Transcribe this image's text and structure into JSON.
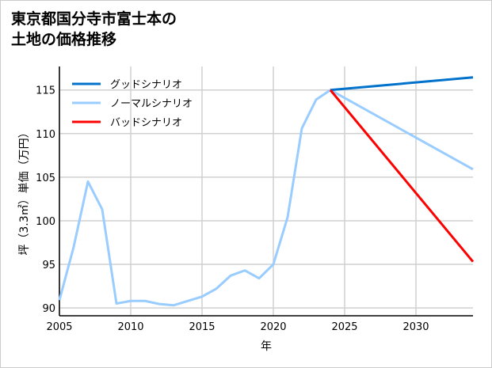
{
  "chart_data": {
    "type": "line",
    "title_lines": [
      "東京都国分寺市富士本の",
      "土地の価格推移"
    ],
    "xlabel": "年",
    "ylabel": "坪（3.3㎡）単価（万円）",
    "xlim": [
      2005,
      2034
    ],
    "ylim": [
      89.1,
      117.7
    ],
    "xticks": [
      2005,
      2010,
      2015,
      2020,
      2025,
      2030
    ],
    "yticks": [
      90,
      95,
      100,
      105,
      110,
      115
    ],
    "grid": true,
    "legend_position": "top-left",
    "series": [
      {
        "name": "グッドシナリオ",
        "color": "#0072cc",
        "x": [
          2024,
          2034
        ],
        "y": [
          115,
          116.45
        ]
      },
      {
        "name": "ノーマルシナリオ",
        "color": "#99ccff",
        "x": [
          2005,
          2006,
          2007,
          2008,
          2009,
          2010,
          2011,
          2012,
          2013,
          2014,
          2015,
          2016,
          2017,
          2018,
          2019,
          2020,
          2021,
          2022,
          2023,
          2024,
          2034
        ],
        "y": [
          90.9,
          97.0,
          104.5,
          101.3,
          90.5,
          90.8,
          90.8,
          90.45,
          90.3,
          90.8,
          91.3,
          92.2,
          93.7,
          94.3,
          93.4,
          95.0,
          100.4,
          110.6,
          113.9,
          115,
          105.9
        ]
      },
      {
        "name": "バッドシナリオ",
        "color": "#ff0000",
        "x": [
          2024,
          2034
        ],
        "y": [
          115,
          95.3
        ]
      }
    ]
  }
}
